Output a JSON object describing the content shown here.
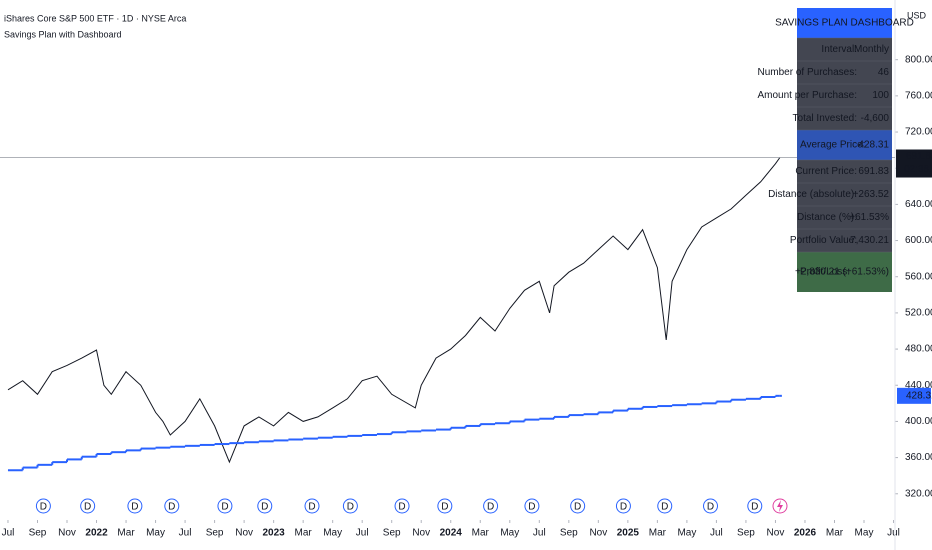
{
  "header": {
    "symbol": "iShares Core S&P 500 ETF · 1D · NYSE Arca",
    "indicator": "Savings Plan with Dashboard",
    "currency": "USD",
    "countdown": "02:38:22"
  },
  "chart_data": {
    "type": "line",
    "xlim": [
      -0.54,
      60.1
    ],
    "xticks": [
      {
        "value": 0,
        "label": "Jul"
      },
      {
        "value": 2,
        "label": "Sep"
      },
      {
        "value": 4,
        "label": "Nov"
      },
      {
        "value": 6,
        "label": "2022"
      },
      {
        "value": 8,
        "label": "Mar"
      },
      {
        "value": 10,
        "label": "May"
      },
      {
        "value": 12,
        "label": "Jul"
      },
      {
        "value": 14,
        "label": "Sep"
      },
      {
        "value": 16,
        "label": "Nov"
      },
      {
        "value": 18,
        "label": "2023"
      },
      {
        "value": 20,
        "label": "Mar"
      },
      {
        "value": 22,
        "label": "May"
      },
      {
        "value": 24,
        "label": "Jul"
      },
      {
        "value": 26,
        "label": "Sep"
      },
      {
        "value": 28,
        "label": "Nov"
      },
      {
        "value": 30,
        "label": "2024"
      },
      {
        "value": 32,
        "label": "Mar"
      },
      {
        "value": 34,
        "label": "May"
      },
      {
        "value": 36,
        "label": "Jul"
      },
      {
        "value": 38,
        "label": "Sep"
      },
      {
        "value": 40,
        "label": "Nov"
      },
      {
        "value": 42,
        "label": "2025"
      },
      {
        "value": 44,
        "label": "Mar"
      },
      {
        "value": 46,
        "label": "May"
      },
      {
        "value": 48,
        "label": "Jul"
      },
      {
        "value": 50,
        "label": "Sep"
      },
      {
        "value": 52,
        "label": "Nov"
      },
      {
        "value": 54,
        "label": "2026"
      },
      {
        "value": 56,
        "label": "Mar"
      },
      {
        "value": 58,
        "label": "May"
      },
      {
        "value": 60,
        "label": "Jul"
      }
    ],
    "ylim": [
      291,
      866
    ],
    "yticks": [
      {
        "value": 320,
        "label": "320.00"
      },
      {
        "value": 360,
        "label": "360.00"
      },
      {
        "value": 400,
        "label": "400.00"
      },
      {
        "value": 440,
        "label": "440.00"
      },
      {
        "value": 480,
        "label": "480.00"
      },
      {
        "value": 520,
        "label": "520.00"
      },
      {
        "value": 560,
        "label": "560.00"
      },
      {
        "value": 600,
        "label": "600.00"
      },
      {
        "value": 640,
        "label": "640.00"
      },
      {
        "value": 680,
        "label": "680.00"
      },
      {
        "value": 720,
        "label": "720.00"
      },
      {
        "value": 760,
        "label": "760.00"
      },
      {
        "value": 800,
        "label": "800.00"
      }
    ],
    "series": [
      {
        "color": "#131722",
        "x": [
          0,
          1,
          2,
          3,
          4,
          5,
          6,
          6.5,
          7,
          8,
          9,
          10,
          10.5,
          11,
          12,
          13,
          13.5,
          14,
          15,
          16,
          17,
          18,
          19,
          20,
          21,
          22,
          23,
          24,
          25,
          26,
          27.6,
          28,
          29,
          30,
          31,
          32,
          33,
          34,
          35,
          36,
          36.7,
          37,
          38,
          39,
          40,
          41,
          42,
          43,
          44,
          44.6,
          45,
          46,
          47,
          48,
          49,
          50,
          51,
          52,
          52.3
        ],
        "values": [
          435,
          445,
          430,
          455,
          462,
          470,
          479,
          440,
          430,
          455,
          440,
          410,
          400,
          385,
          400,
          425,
          410,
          395,
          355,
          395,
          405,
          395,
          410,
          400,
          405,
          415,
          425,
          445,
          450,
          430,
          415,
          440,
          470,
          480,
          495,
          515,
          500,
          525,
          545,
          555,
          520,
          550,
          565,
          575,
          590,
          605,
          590,
          612,
          570,
          490,
          555,
          590,
          615,
          625,
          635,
          650,
          665,
          685,
          691.83
        ]
      },
      {
        "color": "#2962ff",
        "style": "step",
        "x": [
          0,
          1,
          2,
          3,
          4,
          5,
          6,
          7,
          8,
          9,
          10,
          11,
          12,
          13,
          14,
          15,
          16,
          17,
          18,
          19,
          20,
          21,
          22,
          23,
          24,
          25,
          26,
          27,
          28,
          29,
          30,
          31,
          32,
          33,
          34,
          35,
          36,
          37,
          38,
          39,
          40,
          41,
          42,
          43,
          44,
          45,
          46,
          47,
          48,
          49,
          50,
          51,
          52,
          52.3
        ],
        "values": [
          346,
          349,
          352,
          355,
          358,
          361,
          364,
          366,
          368,
          370,
          371,
          372,
          373,
          374,
          375,
          376,
          377,
          378,
          379,
          380,
          381,
          382,
          383,
          384,
          385,
          386,
          388,
          389,
          390,
          391,
          393,
          395,
          397,
          398,
          400,
          402,
          403,
          405,
          407,
          408,
          410,
          412,
          414,
          416,
          417,
          418,
          419,
          420,
          422,
          424,
          425,
          427,
          428.31,
          428.31
        ]
      }
    ],
    "dividends": {
      "label": "D",
      "color": "#2962ff",
      "x": [
        2.4,
        5.4,
        8.6,
        11.1,
        14.7,
        17.4,
        20.6,
        23.2,
        26.7,
        29.6,
        32.7,
        35.5,
        38.6,
        41.7,
        44.5,
        47.6,
        50.6
      ]
    }
  },
  "dashboard": {
    "title": "SAVINGS PLAN DASHBOARD",
    "rows": [
      {
        "label": "Interval:",
        "value": "Monthly",
        "color": "#f5d33c"
      },
      {
        "label": "Number of Purchases:",
        "value": "46",
        "color": "#f5d33c"
      },
      {
        "label": "Amount per Purchase:",
        "value": "100",
        "color": "#f5d33c"
      },
      {
        "label": "Total Invested:",
        "value": "-4,600",
        "color": "#ff9800"
      },
      {
        "label": "Average Price:",
        "value": "428.31",
        "color": "#ffffff",
        "bg": "#2f55b4",
        "big": true
      },
      {
        "label": "Current Price:",
        "value": "691.83",
        "color": "#26c6da"
      },
      {
        "label": "Distance (absolute):",
        "value": "+263.52",
        "color": "#4caf50"
      },
      {
        "label": "Distance (%):",
        "value": "+61.53%",
        "color": "#4caf50"
      },
      {
        "label": "Portfolio Value:",
        "value": "7,430.21",
        "color": "#42a5f5"
      },
      {
        "label": "Profit/Loss:",
        "value": "+2,830.21 (+61.53%)",
        "color": "#66bb6a",
        "bg": "#3e6b47",
        "big": true
      }
    ]
  }
}
